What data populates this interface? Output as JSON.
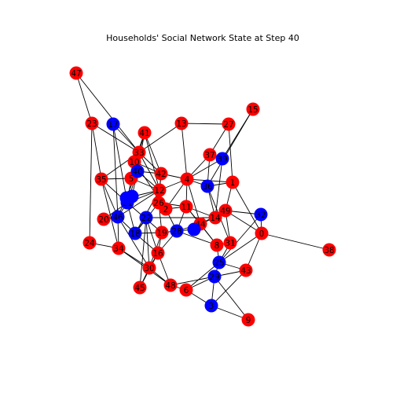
{
  "title": "Households' Social Network State at Step 40",
  "colors": {
    "red": "#ff0000",
    "blue": "#0000ff",
    "edge": "#000000"
  },
  "nodes": [
    {
      "id": 0,
      "label": "0",
      "state": "red"
    },
    {
      "id": 1,
      "label": "1",
      "state": "red"
    },
    {
      "id": 2,
      "label": "2",
      "state": "red"
    },
    {
      "id": 3,
      "label": "3",
      "state": "blue"
    },
    {
      "id": 4,
      "label": "4",
      "state": "red"
    },
    {
      "id": 5,
      "label": "5",
      "state": "red"
    },
    {
      "id": 6,
      "label": "6",
      "state": "red"
    },
    {
      "id": 8,
      "label": "8",
      "state": "red"
    },
    {
      "id": 9,
      "label": "9",
      "state": "red"
    },
    {
      "id": 10,
      "label": "10",
      "state": "red"
    },
    {
      "id": 11,
      "label": "11",
      "state": "red"
    },
    {
      "id": 12,
      "label": "12",
      "state": "red"
    },
    {
      "id": 13,
      "label": "13",
      "state": "red"
    },
    {
      "id": 14,
      "label": "14",
      "state": "red"
    },
    {
      "id": 15,
      "label": "15",
      "state": "red"
    },
    {
      "id": 16,
      "label": "16",
      "state": "red"
    },
    {
      "id": 17,
      "label": "17",
      "state": "blue"
    },
    {
      "id": 18,
      "label": "18",
      "state": "blue"
    },
    {
      "id": 19,
      "label": "19",
      "state": "red"
    },
    {
      "id": 20,
      "label": "20",
      "state": "red"
    },
    {
      "id": 21,
      "label": "21",
      "state": "blue"
    },
    {
      "id": 22,
      "label": "22",
      "state": "blue"
    },
    {
      "id": 23,
      "label": "23",
      "state": "red"
    },
    {
      "id": 24,
      "label": "24",
      "state": "red"
    },
    {
      "id": 25,
      "label": "25",
      "state": "blue"
    },
    {
      "id": 26,
      "label": "26",
      "state": "red"
    },
    {
      "id": 27,
      "label": "27",
      "state": "red"
    },
    {
      "id": 28,
      "label": "28",
      "state": "blue"
    },
    {
      "id": 29,
      "label": "29",
      "state": "blue"
    },
    {
      "id": 30,
      "label": "30",
      "state": "red"
    },
    {
      "id": 31,
      "label": "31",
      "state": "red"
    },
    {
      "id": 32,
      "label": "32",
      "state": "blue"
    },
    {
      "id": 33,
      "label": "33",
      "state": "red"
    },
    {
      "id": 34,
      "label": "34",
      "state": "red"
    },
    {
      "id": 35,
      "label": "35",
      "state": "red"
    },
    {
      "id": 36,
      "label": "36",
      "state": "blue"
    },
    {
      "id": 37,
      "label": "37",
      "state": "red"
    },
    {
      "id": 38,
      "label": "38",
      "state": "red"
    },
    {
      "id": 39,
      "label": "39",
      "state": "blue"
    },
    {
      "id": 40,
      "label": "40",
      "state": "blue"
    },
    {
      "id": 41,
      "label": "41",
      "state": "red"
    },
    {
      "id": 42,
      "label": "42",
      "state": "red"
    },
    {
      "id": 43,
      "label": "43",
      "state": "red"
    },
    {
      "id": 44,
      "label": "44",
      "state": "red"
    },
    {
      "id": 45,
      "label": "45",
      "state": "red"
    },
    {
      "id": 46,
      "label": "46",
      "state": "blue"
    },
    {
      "id": 47,
      "label": "47",
      "state": "red"
    },
    {
      "id": 48,
      "label": "48",
      "state": "red"
    },
    {
      "id": 49,
      "label": "49",
      "state": "red"
    },
    {
      "id": 50,
      "label": "",
      "state": "blue"
    },
    {
      "id": 51,
      "label": "",
      "state": "blue"
    },
    {
      "id": 52,
      "label": "",
      "state": "blue"
    }
  ],
  "edges": [
    [
      47,
      23
    ],
    [
      47,
      33
    ],
    [
      23,
      33
    ],
    [
      23,
      35
    ],
    [
      23,
      24
    ],
    [
      17,
      33
    ],
    [
      17,
      21
    ],
    [
      17,
      46
    ],
    [
      41,
      33
    ],
    [
      41,
      10
    ],
    [
      41,
      40
    ],
    [
      41,
      12
    ],
    [
      41,
      42
    ],
    [
      13,
      33
    ],
    [
      13,
      27
    ],
    [
      13,
      4
    ],
    [
      27,
      37
    ],
    [
      27,
      1
    ],
    [
      15,
      39
    ],
    [
      15,
      36
    ],
    [
      37,
      39
    ],
    [
      37,
      4
    ],
    [
      37,
      36
    ],
    [
      39,
      4
    ],
    [
      39,
      14
    ],
    [
      33,
      10
    ],
    [
      33,
      40
    ],
    [
      33,
      42
    ],
    [
      33,
      12
    ],
    [
      33,
      35
    ],
    [
      10,
      5
    ],
    [
      10,
      40
    ],
    [
      10,
      42
    ],
    [
      10,
      2
    ],
    [
      40,
      42
    ],
    [
      40,
      12
    ],
    [
      40,
      5
    ],
    [
      40,
      21
    ],
    [
      40,
      46
    ],
    [
      42,
      4
    ],
    [
      42,
      12
    ],
    [
      42,
      26
    ],
    [
      5,
      12
    ],
    [
      5,
      21
    ],
    [
      5,
      35
    ],
    [
      35,
      21
    ],
    [
      35,
      34
    ],
    [
      35,
      46
    ],
    [
      4,
      12
    ],
    [
      4,
      36
    ],
    [
      4,
      1
    ],
    [
      4,
      11
    ],
    [
      4,
      44
    ],
    [
      4,
      2
    ],
    [
      36,
      1
    ],
    [
      36,
      14
    ],
    [
      36,
      31
    ],
    [
      1,
      49
    ],
    [
      1,
      0
    ],
    [
      12,
      26
    ],
    [
      12,
      21
    ],
    [
      12,
      18
    ],
    [
      12,
      46
    ],
    [
      26,
      18
    ],
    [
      26,
      2
    ],
    [
      26,
      11
    ],
    [
      26,
      19
    ],
    [
      2,
      11
    ],
    [
      2,
      28
    ],
    [
      21,
      20
    ],
    [
      21,
      18
    ],
    [
      21,
      46
    ],
    [
      21,
      19
    ],
    [
      46,
      20
    ],
    [
      46,
      18
    ],
    [
      46,
      34
    ],
    [
      46,
      30
    ],
    [
      18,
      19
    ],
    [
      18,
      16
    ],
    [
      18,
      22
    ],
    [
      11,
      28
    ],
    [
      11,
      44
    ],
    [
      11,
      8
    ],
    [
      11,
      14
    ],
    [
      28,
      44
    ],
    [
      28,
      16
    ],
    [
      28,
      8
    ],
    [
      28,
      19
    ],
    [
      44,
      14
    ],
    [
      44,
      8
    ],
    [
      44,
      49
    ],
    [
      14,
      49
    ],
    [
      14,
      22
    ],
    [
      49,
      0
    ],
    [
      49,
      31
    ],
    [
      49,
      32
    ],
    [
      32,
      0
    ],
    [
      32,
      25
    ],
    [
      0,
      38
    ],
    [
      0,
      43
    ],
    [
      0,
      25
    ],
    [
      8,
      31
    ],
    [
      8,
      25
    ],
    [
      31,
      25
    ],
    [
      25,
      43
    ],
    [
      25,
      29
    ],
    [
      25,
      6
    ],
    [
      43,
      29
    ],
    [
      43,
      3
    ],
    [
      29,
      3
    ],
    [
      29,
      48
    ],
    [
      29,
      9
    ],
    [
      3,
      9
    ],
    [
      3,
      6
    ],
    [
      19,
      16
    ],
    [
      19,
      30
    ],
    [
      16,
      30
    ],
    [
      16,
      22
    ],
    [
      16,
      48
    ],
    [
      16,
      45
    ],
    [
      22,
      30
    ],
    [
      22,
      45
    ],
    [
      34,
      30
    ],
    [
      34,
      48
    ],
    [
      34,
      24
    ],
    [
      30,
      45
    ],
    [
      30,
      48
    ],
    [
      48,
      6
    ],
    [
      6,
      29
    ],
    [
      20,
      46
    ],
    [
      50,
      12
    ],
    [
      51,
      40
    ],
    [
      52,
      28
    ]
  ]
}
